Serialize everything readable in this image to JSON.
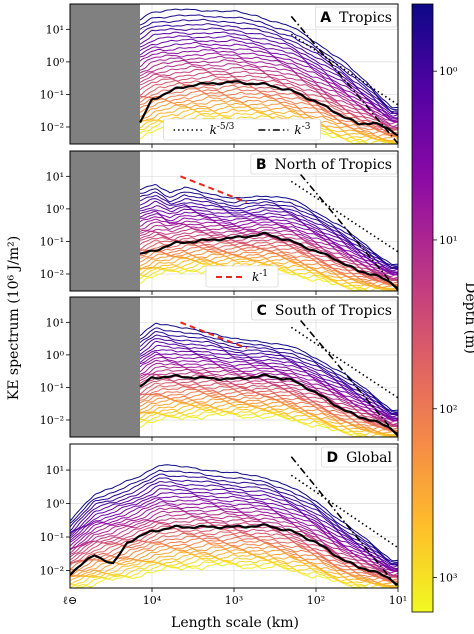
{
  "figure": {
    "ylabel": "KE spectrum (10⁶ J/m²)",
    "xlabel": "Length scale (km)",
    "colorbar_label": "Depth (m)",
    "colorbar_ticks": [
      "10⁰",
      "10¹",
      "10²",
      "10³"
    ],
    "colormap": [
      "#0d0887",
      "#5302a3",
      "#8b0aa5",
      "#b83289",
      "#db5c68",
      "#f48849",
      "#febd2a",
      "#f0f921"
    ],
    "xtick_labels": [
      "10⁴",
      "10³",
      "10²",
      "10¹"
    ],
    "x_origin_label": "ℓ⊖",
    "ytick_labels": [
      "10⁻²",
      "10⁻¹",
      "10⁰",
      "10¹"
    ]
  },
  "chart_data": [
    {
      "type": "line",
      "panel_letter": "A",
      "title": "Tropics",
      "xscale": "log-reversed",
      "yscale": "log",
      "xlim": [
        100000,
        10
      ],
      "ylim": [
        0.003,
        60
      ],
      "masked_region": [
        100000,
        14000
      ],
      "legend": [
        {
          "style": "dotted",
          "label": "k^{-5/3}"
        },
        {
          "style": "dashdot",
          "label": "k^{-3}"
        }
      ],
      "legend_placement": "bottom-center",
      "reference_lines": [
        {
          "label": "k^{-5/3}",
          "style": "dotted",
          "x": [
            200,
            10
          ],
          "y": [
            7,
            0.048
          ]
        },
        {
          "label": "k^{-3}",
          "style": "dashdot",
          "x": [
            200,
            10
          ],
          "y": [
            25,
            0.0031
          ]
        }
      ],
      "depth_mean": {
        "x": [
          14000,
          10000,
          5000,
          3000,
          1000,
          400,
          200,
          100,
          60,
          30,
          20,
          10
        ],
        "y": [
          0.013,
          0.07,
          0.15,
          0.2,
          0.24,
          0.2,
          0.13,
          0.06,
          0.03,
          0.012,
          0.014,
          0.006
        ]
      },
      "shallowest": {
        "x": [
          14000,
          10000,
          5000,
          2000,
          1000,
          500,
          200,
          100,
          50,
          20,
          12
        ],
        "y": [
          20,
          35,
          40,
          38,
          35,
          25,
          12,
          4,
          1.2,
          0.15,
          0.04
        ]
      },
      "deepest": {
        "x": [
          14000,
          8000,
          3000,
          1000,
          300,
          100,
          50,
          20,
          12
        ],
        "y": [
          0.005,
          0.009,
          0.013,
          0.014,
          0.012,
          0.007,
          0.004,
          0.003,
          0.003
        ]
      }
    },
    {
      "type": "line",
      "panel_letter": "B",
      "title": "North of Tropics",
      "xscale": "log-reversed",
      "yscale": "log",
      "xlim": [
        100000,
        10
      ],
      "ylim": [
        0.003,
        60
      ],
      "masked_region": [
        100000,
        14000
      ],
      "legend": [
        {
          "style": "dashed-red",
          "label": "k^{-1}"
        }
      ],
      "legend_placement": "bottom-center",
      "reference_lines": [
        {
          "label": "k^{-5/3}",
          "style": "dotted",
          "x": [
            200,
            10
          ],
          "y": [
            7,
            0.048
          ]
        },
        {
          "label": "k^{-3}",
          "style": "dashdot",
          "x": [
            200,
            10
          ],
          "y": [
            25,
            0.0031
          ]
        },
        {
          "label": "k^{-1}",
          "style": "dashed-red",
          "x": [
            4500,
            700
          ],
          "y": [
            10,
            1.6
          ]
        }
      ],
      "depth_mean": {
        "x": [
          14000,
          10000,
          5000,
          3000,
          1000,
          400,
          200,
          100,
          60,
          30,
          20,
          10
        ],
        "y": [
          0.04,
          0.05,
          0.09,
          0.1,
          0.13,
          0.17,
          0.1,
          0.05,
          0.03,
          0.012,
          0.01,
          0.004
        ]
      },
      "shallowest": {
        "x": [
          14000,
          9000,
          6000,
          4000,
          2000,
          1000,
          400,
          200,
          100,
          50,
          20,
          12
        ],
        "y": [
          4,
          6,
          3,
          4.5,
          3,
          2,
          2.6,
          2,
          0.8,
          0.3,
          0.05,
          0.02
        ]
      },
      "deepest": {
        "x": [
          14000,
          8000,
          3000,
          1000,
          300,
          100,
          50,
          20,
          12
        ],
        "y": [
          0.006,
          0.01,
          0.013,
          0.014,
          0.012,
          0.007,
          0.004,
          0.003,
          0.003
        ]
      }
    },
    {
      "type": "line",
      "panel_letter": "C",
      "title": "South of Tropics",
      "xscale": "log-reversed",
      "yscale": "log",
      "xlim": [
        100000,
        10
      ],
      "ylim": [
        0.003,
        60
      ],
      "masked_region": [
        100000,
        14000
      ],
      "reference_lines": [
        {
          "label": "k^{-5/3}",
          "style": "dotted",
          "x": [
            200,
            10
          ],
          "y": [
            7,
            0.048
          ]
        },
        {
          "label": "k^{-3}",
          "style": "dashdot",
          "x": [
            200,
            10
          ],
          "y": [
            25,
            0.0031
          ]
        },
        {
          "label": "k^{-1}",
          "style": "dashed-red",
          "x": [
            4500,
            700
          ],
          "y": [
            10,
            1.6
          ]
        }
      ],
      "depth_mean": {
        "x": [
          14000,
          10000,
          5000,
          3000,
          1000,
          400,
          200,
          100,
          60,
          30,
          20,
          10
        ],
        "y": [
          0.1,
          0.2,
          0.22,
          0.2,
          0.18,
          0.23,
          0.17,
          0.07,
          0.03,
          0.012,
          0.01,
          0.004
        ]
      },
      "shallowest": {
        "x": [
          14000,
          9000,
          5000,
          2000,
          1000,
          400,
          200,
          100,
          50,
          20,
          12
        ],
        "y": [
          4,
          10,
          7,
          5,
          3,
          2.5,
          1.8,
          0.8,
          0.3,
          0.06,
          0.02
        ]
      },
      "deepest": {
        "x": [
          14000,
          8000,
          3000,
          1000,
          300,
          100,
          50,
          20,
          12
        ],
        "y": [
          0.007,
          0.01,
          0.013,
          0.014,
          0.012,
          0.007,
          0.004,
          0.003,
          0.003
        ]
      }
    },
    {
      "type": "line",
      "panel_letter": "D",
      "title": "Global",
      "xscale": "log-reversed",
      "yscale": "log",
      "xlim": [
        100000,
        10
      ],
      "ylim": [
        0.003,
        60
      ],
      "reference_lines": [
        {
          "label": "k^{-5/3}",
          "style": "dotted",
          "x": [
            200,
            10
          ],
          "y": [
            7,
            0.048
          ]
        },
        {
          "label": "k^{-3}",
          "style": "dashdot",
          "x": [
            200,
            10
          ],
          "y": [
            25,
            0.0031
          ]
        }
      ],
      "depth_mean": {
        "x": [
          100000,
          50000,
          30000,
          20000,
          10000,
          5000,
          3000,
          1000,
          400,
          200,
          100,
          60,
          30,
          20,
          10
        ],
        "y": [
          0.008,
          0.03,
          0.015,
          0.07,
          0.15,
          0.2,
          0.2,
          0.2,
          0.22,
          0.15,
          0.07,
          0.03,
          0.012,
          0.01,
          0.004
        ]
      },
      "shallowest": {
        "x": [
          100000,
          50000,
          30000,
          15000,
          8000,
          4000,
          2000,
          1000,
          400,
          200,
          100,
          50,
          20,
          12
        ],
        "y": [
          0.3,
          2,
          3,
          6,
          15,
          12,
          10,
          8,
          6,
          3,
          1.2,
          0.3,
          0.06,
          0.02
        ]
      },
      "deepest": {
        "x": [
          100000,
          50000,
          8000,
          3000,
          1000,
          300,
          100,
          50,
          20,
          12
        ],
        "y": [
          0.003,
          0.004,
          0.01,
          0.013,
          0.014,
          0.012,
          0.007,
          0.004,
          0.003,
          0.003
        ]
      }
    }
  ]
}
